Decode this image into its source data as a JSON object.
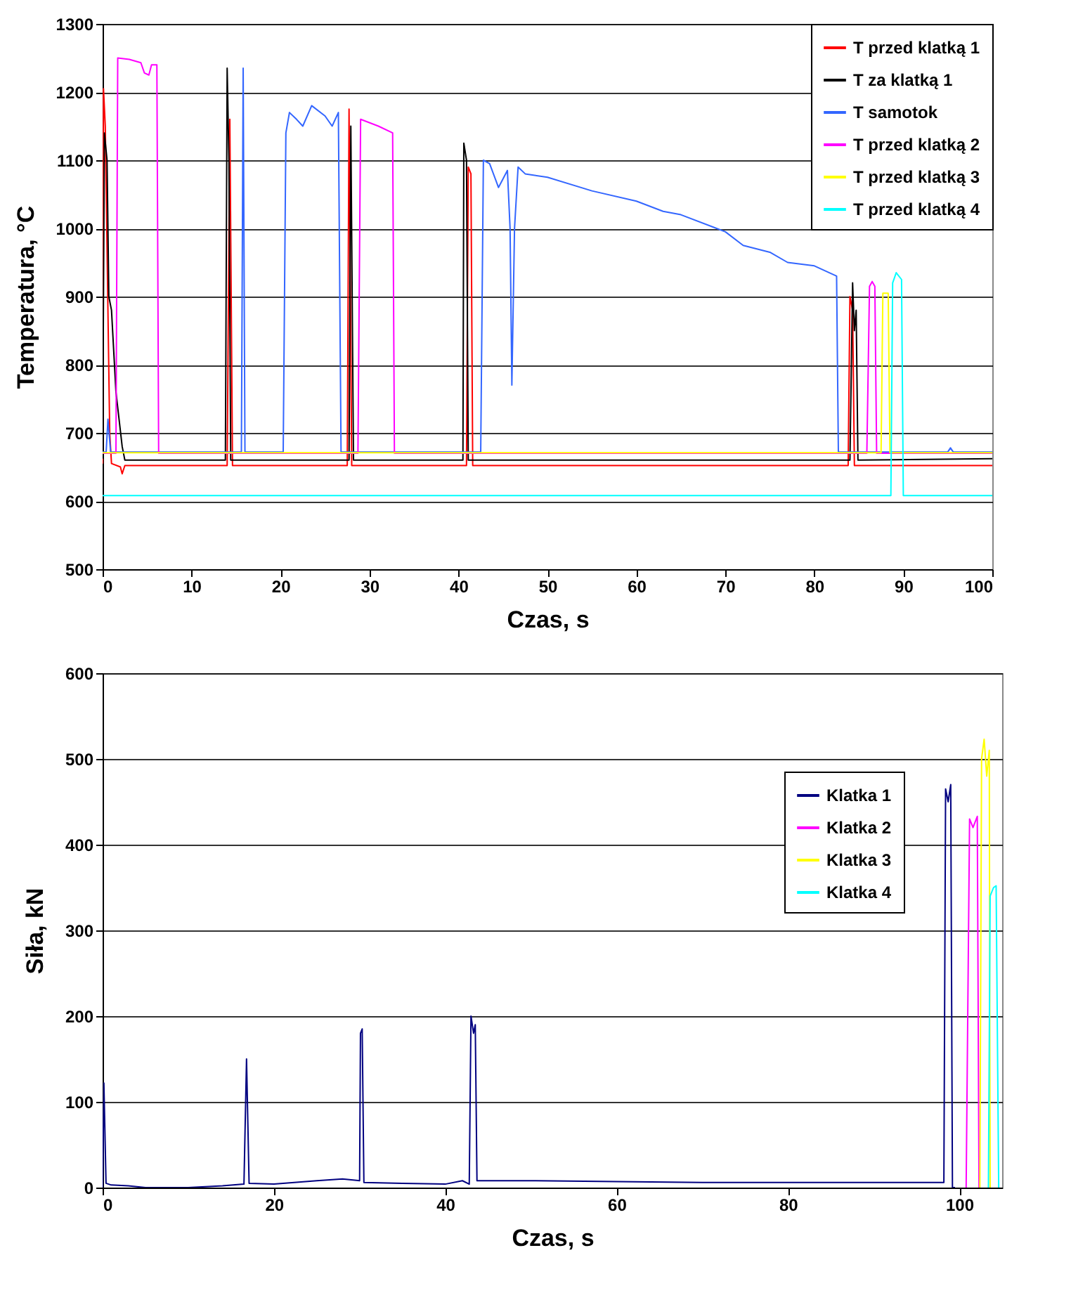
{
  "chart_data": [
    {
      "type": "line",
      "xlabel": "Czas, s",
      "ylabel": "Temperatura, °C",
      "xlim": [
        0,
        100
      ],
      "ylim": [
        500,
        1300
      ],
      "xticks": [
        0,
        10,
        20,
        30,
        40,
        50,
        60,
        70,
        80,
        90,
        100
      ],
      "yticks": [
        500,
        600,
        700,
        800,
        900,
        1000,
        1100,
        1200,
        1300
      ],
      "grid": "y",
      "legend": "top right",
      "series": [
        {
          "name": "T przed klatką 1",
          "color": "#ff0000",
          "x": [
            0,
            0.1,
            0.3,
            0.8,
            1,
            2,
            2.2,
            2.5,
            14,
            14.3,
            14.6,
            27.5,
            27.7,
            28,
            40.9,
            41.1,
            41.4,
            41.6,
            83.8,
            84,
            84.3,
            84.5,
            100
          ],
          "values": [
            655,
            1205,
            1150,
            700,
            655,
            650,
            640,
            652,
            652,
            1160,
            652,
            652,
            1175,
            652,
            652,
            1090,
            1080,
            652,
            652,
            900,
            880,
            652,
            652
          ]
        },
        {
          "name": "T za klatką 1",
          "color": "#000000",
          "x": [
            0,
            0.2,
            0.5,
            0.7,
            1,
            1.5,
            2.2,
            2.5,
            13.8,
            14,
            14.2,
            14.4,
            27.7,
            27.9,
            28.2,
            40.5,
            40.6,
            40.9,
            41.1,
            84,
            84.3,
            84.5,
            84.7,
            84.9,
            100
          ],
          "values": [
            662,
            1140,
            1100,
            900,
            880,
            760,
            680,
            660,
            660,
            1235,
            1100,
            660,
            660,
            1150,
            660,
            660,
            1125,
            1100,
            660,
            660,
            920,
            850,
            880,
            660,
            662
          ]
        },
        {
          "name": "T samotok",
          "color": "#3366ff",
          "x": [
            0,
            0.4,
            0.6,
            0.9,
            15.6,
            15.8,
            16,
            20.3,
            20.6,
            21,
            21.8,
            22.5,
            23.5,
            25,
            25.8,
            26.5,
            26.8,
            42.5,
            42.8,
            43.5,
            44.5,
            45.5,
            45.8,
            46,
            46.3,
            46.7,
            47.5,
            50,
            55,
            60,
            63,
            65,
            70,
            72,
            75,
            77,
            80,
            82.5,
            82.7,
            95,
            95.3,
            95.6,
            100
          ],
          "values": [
            672,
            672,
            720,
            672,
            672,
            1235,
            672,
            672,
            1140,
            1170,
            1160,
            1150,
            1180,
            1165,
            1150,
            1170,
            672,
            672,
            1100,
            1095,
            1060,
            1085,
            1000,
            770,
            1000,
            1090,
            1080,
            1075,
            1055,
            1040,
            1025,
            1020,
            995,
            975,
            965,
            950,
            945,
            930,
            672,
            672,
            678,
            672,
            672
          ]
        },
        {
          "name": "T przed klatką 2",
          "color": "#ff00ff",
          "x": [
            0,
            1.5,
            1.7,
            3,
            4.3,
            4.7,
            5.2,
            5.5,
            6.1,
            6.3,
            28.7,
            29,
            31,
            32.6,
            32.8,
            85.9,
            86.2,
            86.5,
            86.8,
            87,
            100
          ],
          "values": [
            670,
            670,
            1250,
            1248,
            1243,
            1228,
            1225,
            1240,
            1240,
            670,
            670,
            1160,
            1150,
            1140,
            670,
            670,
            915,
            922,
            915,
            670,
            670
          ]
        },
        {
          "name": "T przed klatką 3",
          "color": "#ffff00",
          "x": [
            0,
            87.5,
            87.7,
            88.3,
            88.5,
            100
          ],
          "values": [
            671,
            671,
            905,
            905,
            671,
            671
          ]
        },
        {
          "name": "T przed klatką 4",
          "color": "#00ffff",
          "x": [
            0,
            88.6,
            88.8,
            89.2,
            89.8,
            90,
            100
          ],
          "values": [
            608,
            608,
            920,
            935,
            925,
            608,
            608
          ]
        }
      ]
    },
    {
      "type": "line",
      "xlabel": "Czas, s",
      "ylabel": "Siła, kN",
      "xlim": [
        0,
        105
      ],
      "ylim": [
        0,
        600
      ],
      "xticks": [
        0,
        20,
        40,
        60,
        80,
        100
      ],
      "yticks": [
        0,
        100,
        200,
        300,
        400,
        500,
        600
      ],
      "grid": "y",
      "legend": "top right",
      "series": [
        {
          "name": "Klatka 1",
          "color": "#000080",
          "x": [
            0,
            0.15,
            0.4,
            1,
            3,
            5,
            10,
            14,
            16.5,
            16.8,
            17.1,
            20,
            25,
            28,
            30,
            30.1,
            30.3,
            30.5,
            35,
            40,
            42,
            42.8,
            43,
            43.3,
            43.5,
            43.7,
            50,
            60,
            70,
            80,
            98.2,
            98.4,
            98.7,
            99,
            99.2,
            99.5
          ],
          "values": [
            0,
            122,
            5,
            3,
            2,
            0,
            0,
            2,
            4,
            150,
            5,
            4,
            8,
            10,
            8,
            180,
            185,
            6,
            5,
            4,
            8,
            4,
            200,
            180,
            190,
            8,
            8,
            7,
            6,
            6,
            6,
            465,
            450,
            470,
            0,
            0
          ]
        },
        {
          "name": "Klatka 2",
          "color": "#ff00ff",
          "x": [
            100.8,
            101.2,
            101.6,
            102.1,
            102.3
          ],
          "values": [
            0,
            430,
            420,
            433,
            0
          ]
        },
        {
          "name": "Klatka 3",
          "color": "#ffff00",
          "x": [
            102.4,
            102.6,
            102.9,
            103.2,
            103.5,
            103.6
          ],
          "values": [
            0,
            500,
            523,
            480,
            510,
            0
          ]
        },
        {
          "name": "Klatka 4",
          "color": "#00ffff",
          "x": [
            103.4,
            103.6,
            104,
            104.3,
            104.6
          ],
          "values": [
            0,
            340,
            350,
            352,
            0
          ]
        }
      ]
    }
  ]
}
